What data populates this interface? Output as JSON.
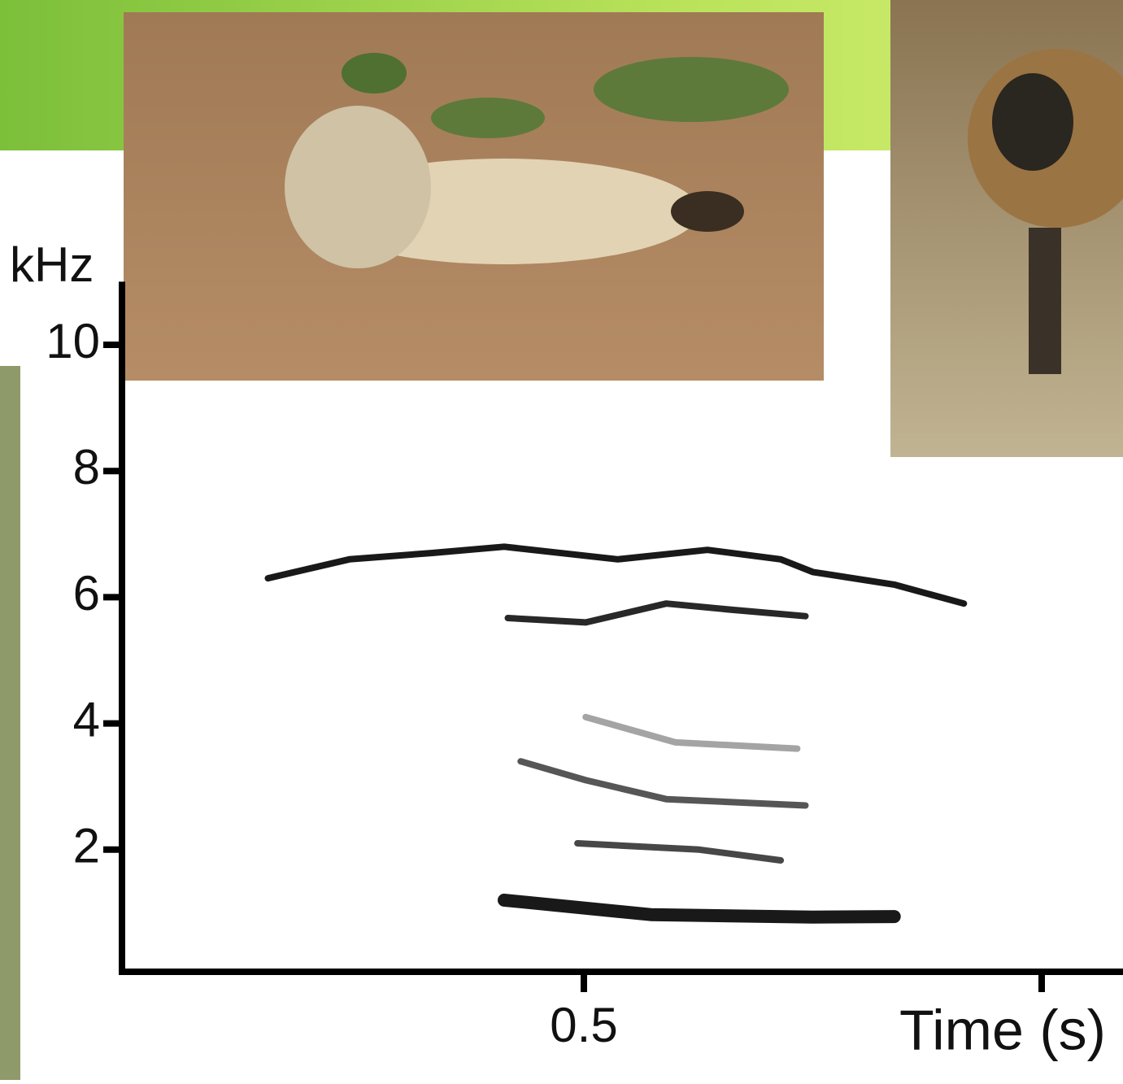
{
  "chart_data": {
    "type": "spectrogram",
    "x_label": "Time (s)",
    "y_label": "kHz",
    "xlim": [
      0,
      1.05
    ],
    "xticks": [
      0.5,
      {
        "value": 1,
        "label": null
      }
    ],
    "ylim": [
      0,
      11
    ],
    "yticks": [
      2,
      4,
      6,
      8,
      10
    ],
    "series": [
      {
        "color": "#000000",
        "x": [
          0.155,
          0.244,
          0.333,
          0.413,
          0.537,
          0.635,
          0.715,
          0.75,
          0.839,
          0.915
        ],
        "values": [
          6.3,
          6.6,
          6.7,
          6.8,
          6.6,
          6.75,
          6.6,
          6.4,
          6.2,
          5.9
        ]
      },
      {
        "color": "#111111",
        "x": [
          0.417,
          0.502,
          0.59,
          0.662,
          0.742
        ],
        "values": [
          5.67,
          5.6,
          5.9,
          5.8,
          5.7
        ]
      },
      {
        "color": "#9a9a9a",
        "x": [
          0.502,
          0.6,
          0.733
        ],
        "values": [
          4.1,
          3.7,
          3.6
        ]
      },
      {
        "color": "#444444",
        "x": [
          0.431,
          0.502,
          0.59,
          0.742
        ],
        "values": [
          3.4,
          3.1,
          2.8,
          2.7
        ]
      },
      {
        "color": "#333333",
        "x": [
          0.493,
          0.626,
          0.715
        ],
        "values": [
          2.1,
          2.0,
          1.83
        ]
      },
      {
        "color": "#000000",
        "x": [
          0.413,
          0.573,
          0.75,
          0.839
        ],
        "values": [
          1.2,
          0.97,
          0.93,
          0.94
        ]
      }
    ]
  }
}
